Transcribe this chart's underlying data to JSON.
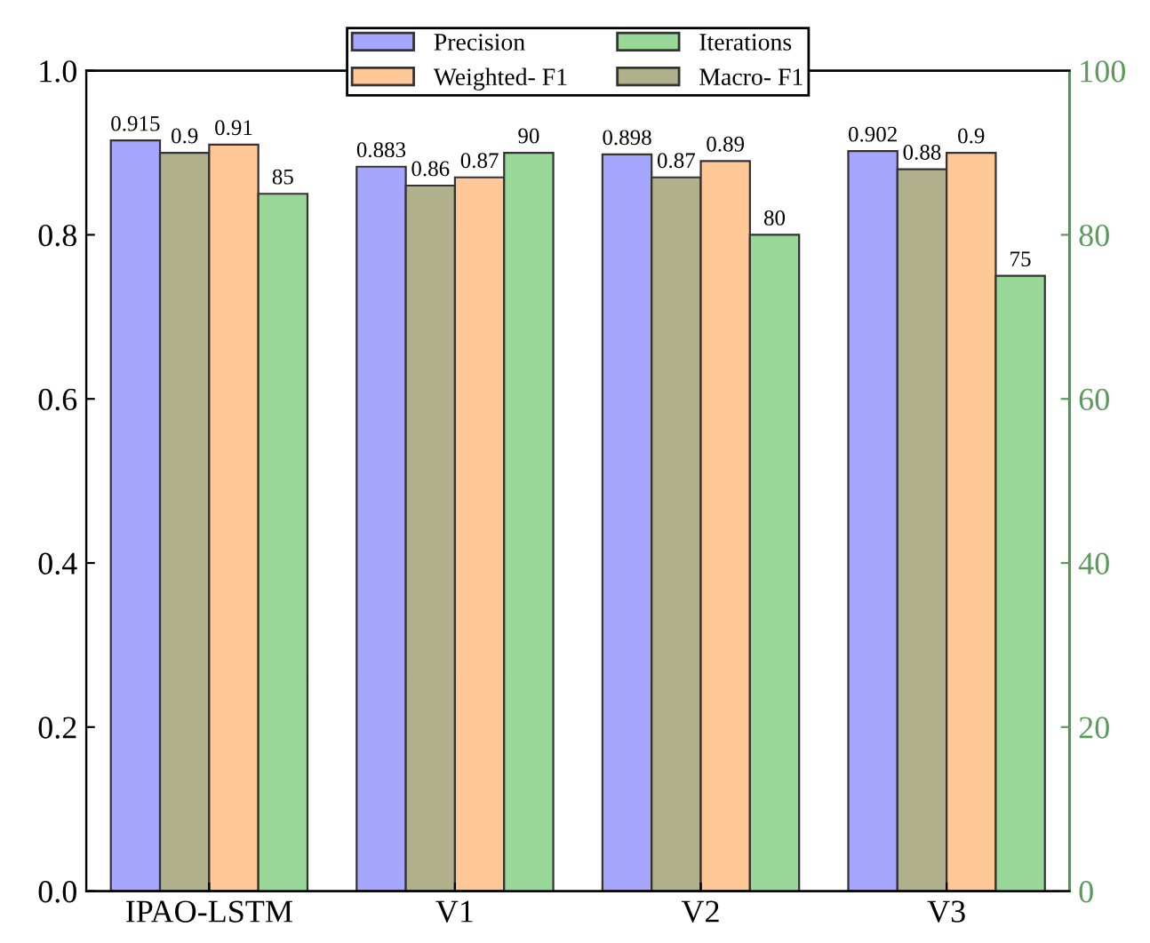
{
  "chart_data": {
    "type": "bar",
    "categories": [
      "IPAO-LSTM",
      "V1",
      "V2",
      "V3"
    ],
    "series": [
      {
        "name": "Precision",
        "color": "#a6a6ff",
        "values": [
          0.915,
          0.883,
          0.898,
          0.902
        ]
      },
      {
        "name": "Macro- F1",
        "color": "#b0b08c",
        "values": [
          0.9,
          0.86,
          0.87,
          0.88
        ]
      },
      {
        "name": "Weighted- F1",
        "color": "#ffc896",
        "values": [
          0.91,
          0.87,
          0.89,
          0.9
        ]
      },
      {
        "name": "Iterations",
        "color": "#9ad89a",
        "axis": "y2",
        "values": [
          85,
          90,
          80,
          75
        ]
      }
    ],
    "ylim": [
      0,
      1.0
    ],
    "yticks": [
      {
        "value": 0,
        "label": "0.0"
      },
      0.2,
      0.4,
      0.6,
      0.8,
      {
        "value": 1.0,
        "label": "1.0"
      }
    ],
    "y2lim": [
      0,
      100
    ],
    "y2ticks": [
      0,
      20,
      40,
      60,
      80,
      100
    ],
    "data_labels": true,
    "legend": "top",
    "grid": false
  }
}
